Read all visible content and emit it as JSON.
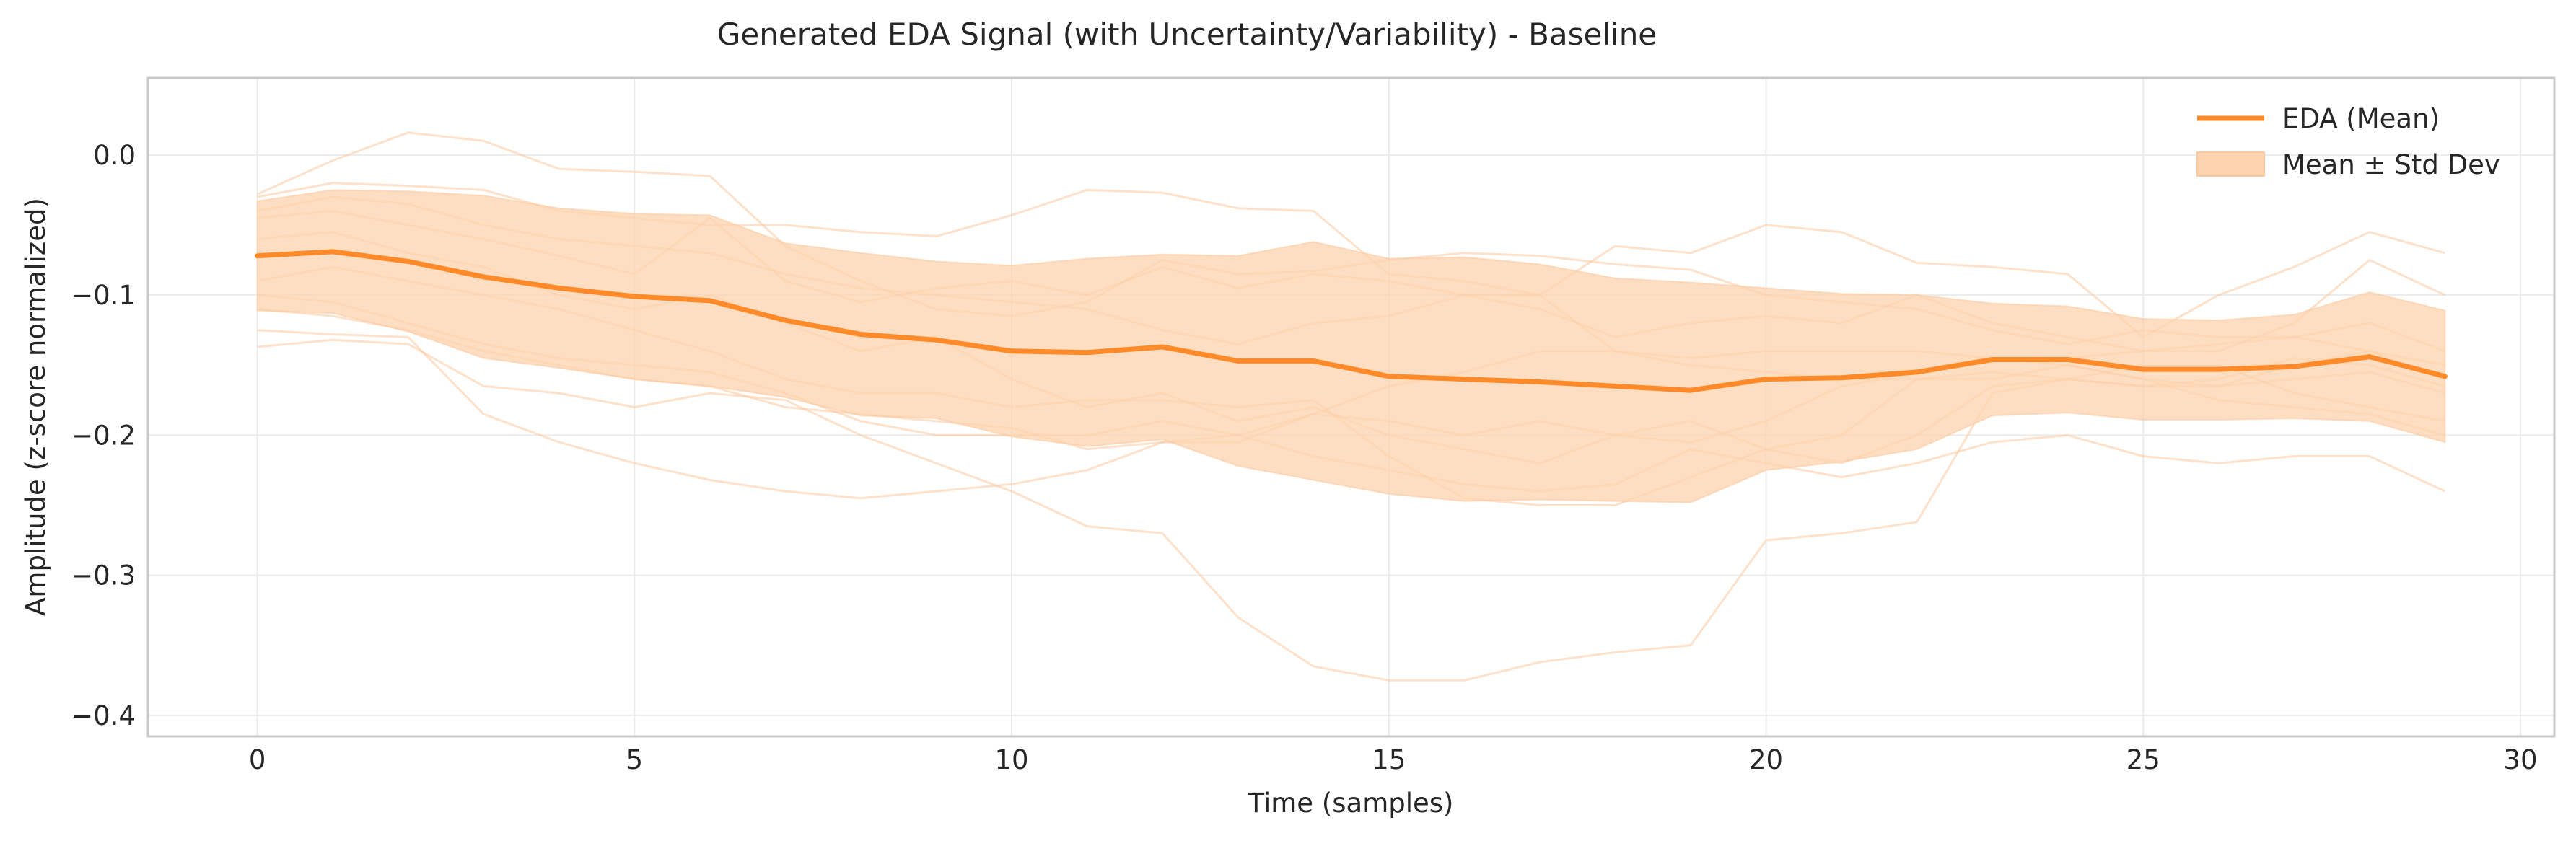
{
  "chart_data": {
    "type": "line",
    "title": "Generated EDA Signal (with Uncertainty/Variability) - Baseline",
    "xlabel": "Time (samples)",
    "ylabel": "Amplitude (z-score normalized)",
    "xlim": [
      -1.45,
      30.45
    ],
    "ylim": [
      -0.415,
      0.055
    ],
    "xticks": [
      0,
      5,
      10,
      15,
      20,
      25,
      30
    ],
    "yticks": [
      0.0,
      -0.1,
      -0.2,
      -0.3,
      -0.4
    ],
    "ytick_labels": [
      "0.0",
      "−0.1",
      "−0.2",
      "−0.3",
      "−0.4"
    ],
    "grid": true,
    "legend_position": "top-right",
    "colors": {
      "mean": "#ff8a2a",
      "band": "#fdd3ad",
      "samples": "#fbc9a0",
      "grid": "#ebebeb",
      "axes": "#c8c8c8"
    },
    "x": [
      0,
      1,
      2,
      3,
      4,
      5,
      6,
      7,
      8,
      9,
      10,
      11,
      12,
      13,
      14,
      15,
      16,
      17,
      18,
      19,
      20,
      21,
      22,
      23,
      24,
      25,
      26,
      27,
      28,
      29
    ],
    "series": [
      {
        "name": "EDA (Mean)",
        "values": [
          -0.072,
          -0.069,
          -0.076,
          -0.087,
          -0.095,
          -0.101,
          -0.104,
          -0.118,
          -0.128,
          -0.132,
          -0.14,
          -0.141,
          -0.137,
          -0.147,
          -0.147,
          -0.158,
          -0.16,
          -0.162,
          -0.165,
          -0.168,
          -0.16,
          -0.159,
          -0.155,
          -0.146,
          -0.146,
          -0.153,
          -0.153,
          -0.151,
          -0.144,
          -0.158
        ]
      },
      {
        "name": "Mean ± Std Dev",
        "upper": [
          -0.033,
          -0.025,
          -0.026,
          -0.029,
          -0.038,
          -0.042,
          -0.043,
          -0.063,
          -0.07,
          -0.076,
          -0.079,
          -0.074,
          -0.071,
          -0.072,
          -0.062,
          -0.074,
          -0.073,
          -0.078,
          -0.088,
          -0.091,
          -0.095,
          -0.099,
          -0.1,
          -0.106,
          -0.108,
          -0.117,
          -0.118,
          -0.114,
          -0.098,
          -0.111
        ],
        "lower": [
          -0.111,
          -0.113,
          -0.126,
          -0.145,
          -0.152,
          -0.16,
          -0.165,
          -0.173,
          -0.186,
          -0.188,
          -0.201,
          -0.208,
          -0.203,
          -0.222,
          -0.232,
          -0.242,
          -0.247,
          -0.246,
          -0.247,
          -0.248,
          -0.225,
          -0.219,
          -0.21,
          -0.186,
          -0.184,
          -0.189,
          -0.189,
          -0.188,
          -0.19,
          -0.205
        ]
      }
    ],
    "samples": [
      [
        -0.028,
        -0.004,
        0.016,
        0.01,
        -0.01,
        -0.012,
        -0.015,
        -0.065,
        -0.09,
        -0.11,
        -0.115,
        -0.105,
        -0.075,
        -0.085,
        -0.083,
        -0.075,
        -0.07,
        -0.072,
        -0.078,
        -0.082,
        -0.1,
        -0.105,
        -0.11,
        -0.125,
        -0.135,
        -0.125,
        -0.13,
        -0.13,
        -0.12,
        -0.14
      ],
      [
        -0.03,
        -0.02,
        -0.022,
        -0.025,
        -0.04,
        -0.045,
        -0.05,
        -0.05,
        -0.055,
        -0.058,
        -0.043,
        -0.025,
        -0.027,
        -0.038,
        -0.04,
        -0.085,
        -0.09,
        -0.1,
        -0.065,
        -0.07,
        -0.05,
        -0.055,
        -0.077,
        -0.08,
        -0.085,
        -0.13,
        -0.1,
        -0.08,
        -0.055,
        -0.07
      ],
      [
        -0.04,
        -0.03,
        -0.035,
        -0.05,
        -0.06,
        -0.065,
        -0.07,
        -0.085,
        -0.095,
        -0.1,
        -0.105,
        -0.11,
        -0.125,
        -0.135,
        -0.12,
        -0.115,
        -0.1,
        -0.1,
        -0.14,
        -0.145,
        -0.14,
        -0.14,
        -0.14,
        -0.145,
        -0.145,
        -0.14,
        -0.14,
        -0.12,
        -0.075,
        -0.1
      ],
      [
        -0.045,
        -0.04,
        -0.05,
        -0.06,
        -0.072,
        -0.085,
        -0.045,
        -0.09,
        -0.105,
        -0.095,
        -0.09,
        -0.1,
        -0.08,
        -0.095,
        -0.085,
        -0.09,
        -0.1,
        -0.11,
        -0.13,
        -0.12,
        -0.115,
        -0.12,
        -0.1,
        -0.12,
        -0.13,
        -0.14,
        -0.135,
        -0.13,
        -0.14,
        -0.15
      ],
      [
        -0.06,
        -0.055,
        -0.07,
        -0.08,
        -0.1,
        -0.11,
        -0.1,
        -0.12,
        -0.14,
        -0.13,
        -0.16,
        -0.18,
        -0.17,
        -0.19,
        -0.18,
        -0.2,
        -0.21,
        -0.22,
        -0.2,
        -0.19,
        -0.21,
        -0.22,
        -0.2,
        -0.165,
        -0.16,
        -0.165,
        -0.165,
        -0.15,
        -0.14,
        -0.16
      ],
      [
        -0.09,
        -0.08,
        -0.09,
        -0.1,
        -0.11,
        -0.125,
        -0.14,
        -0.16,
        -0.17,
        -0.17,
        -0.18,
        -0.175,
        -0.175,
        -0.18,
        -0.175,
        -0.215,
        -0.245,
        -0.25,
        -0.25,
        -0.23,
        -0.21,
        -0.2,
        -0.16,
        -0.16,
        -0.15,
        -0.16,
        -0.165,
        -0.16,
        -0.155,
        -0.17
      ],
      [
        -0.1,
        -0.105,
        -0.12,
        -0.135,
        -0.145,
        -0.15,
        -0.155,
        -0.17,
        -0.19,
        -0.2,
        -0.2,
        -0.2,
        -0.19,
        -0.2,
        -0.185,
        -0.19,
        -0.2,
        -0.19,
        -0.2,
        -0.205,
        -0.19,
        -0.165,
        -0.155,
        -0.145,
        -0.15,
        -0.16,
        -0.175,
        -0.18,
        -0.185,
        -0.2
      ],
      [
        -0.125,
        -0.128,
        -0.13,
        -0.185,
        -0.205,
        -0.22,
        -0.232,
        -0.24,
        -0.245,
        -0.24,
        -0.235,
        -0.225,
        -0.205,
        -0.205,
        -0.185,
        -0.165,
        -0.155,
        -0.14,
        -0.14,
        -0.15,
        -0.155,
        -0.16,
        -0.16,
        -0.155,
        -0.16,
        -0.165,
        -0.16,
        -0.145,
        -0.15,
        -0.165
      ],
      [
        -0.137,
        -0.132,
        -0.135,
        -0.165,
        -0.17,
        -0.18,
        -0.17,
        -0.175,
        -0.2,
        -0.22,
        -0.24,
        -0.265,
        -0.27,
        -0.33,
        -0.365,
        -0.375,
        -0.375,
        -0.362,
        -0.355,
        -0.35,
        -0.275,
        -0.27,
        -0.262,
        -0.17,
        -0.16,
        -0.15,
        -0.15,
        -0.17,
        -0.18,
        -0.19
      ],
      [
        -0.11,
        -0.115,
        -0.125,
        -0.14,
        -0.15,
        -0.16,
        -0.165,
        -0.18,
        -0.185,
        -0.19,
        -0.195,
        -0.21,
        -0.205,
        -0.2,
        -0.215,
        -0.225,
        -0.235,
        -0.24,
        -0.235,
        -0.21,
        -0.22,
        -0.23,
        -0.22,
        -0.205,
        -0.2,
        -0.215,
        -0.22,
        -0.215,
        -0.215,
        -0.24
      ]
    ]
  }
}
